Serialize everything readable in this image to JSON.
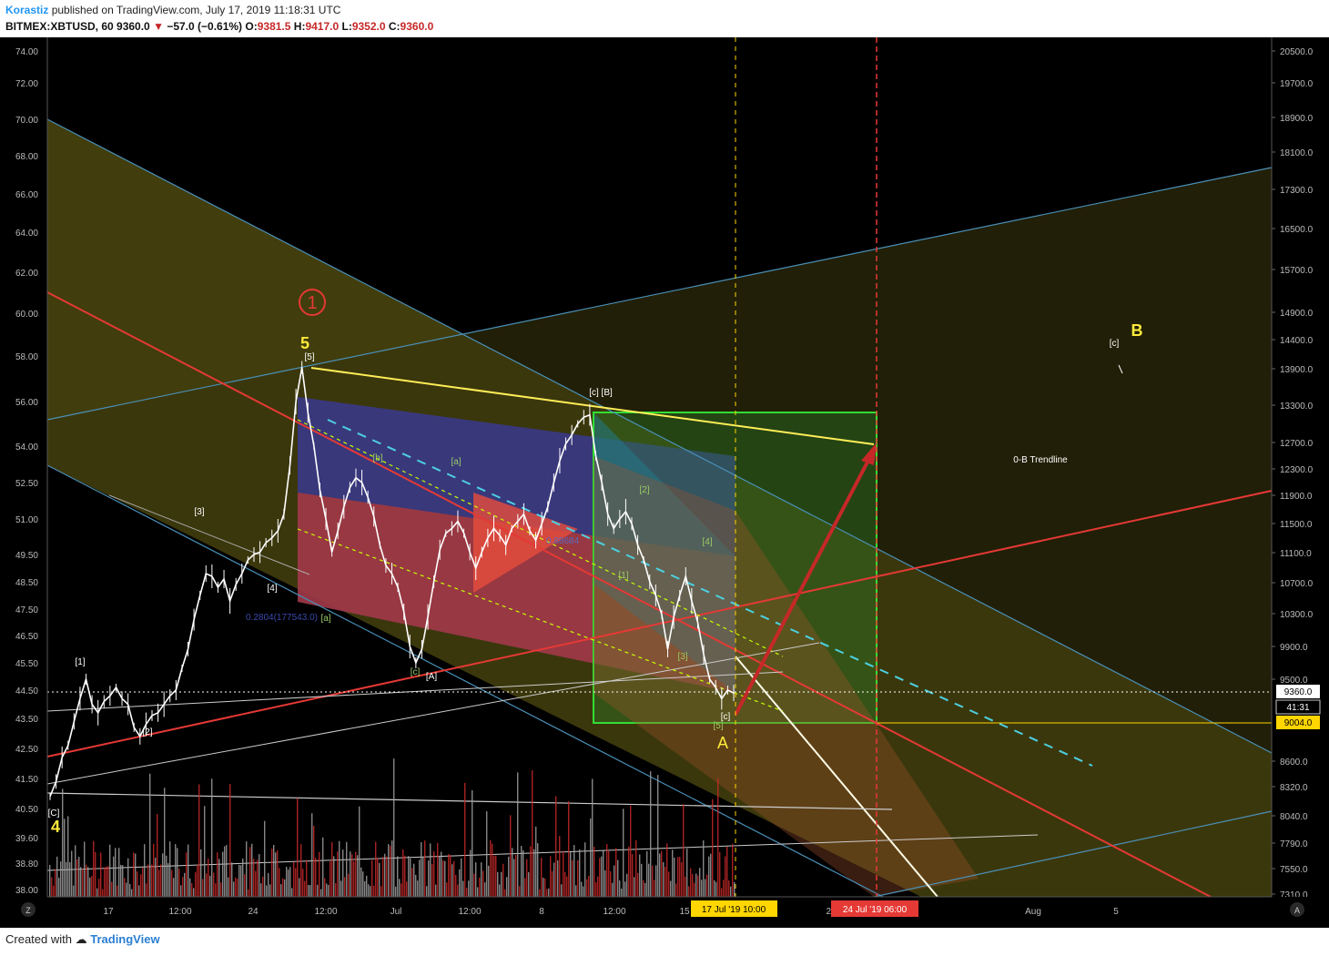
{
  "header": {
    "author": "Korastiz",
    "published": "published on TradingView.com, July 17, 2019 11:18:31 UTC",
    "symbol": "BITMEX:XBTUSD, 60",
    "last": "9360.0",
    "change": "−57.0 (−0.61%)",
    "o_label": "O:",
    "o": "9381.5",
    "h_label": "H:",
    "h": "9417.0",
    "l_label": "L:",
    "l": "9352.0",
    "c_label": "C:",
    "c": "9360.0"
  },
  "footer": {
    "created_with": "Created with",
    "brand": "TradingView"
  },
  "colors": {
    "background": "#000000",
    "candle": "#ffffff",
    "trend_red": "#e53935",
    "channel_blue": "#4a90b8",
    "yellow_line": "#ffee58",
    "green_box": "#33dd33",
    "price_tag": "#ffd600",
    "time_tag_current": "#ffd600",
    "time_tag_target": "#e53935"
  },
  "chart_data": {
    "type": "candlestick",
    "symbol": "BITMEX:XBTUSD",
    "interval": "60",
    "y_scale": "log",
    "right_axis_ticks": [
      "20500.0",
      "19700.0",
      "18900.0",
      "18100.0",
      "17300.0",
      "16500.0",
      "15700.0",
      "14900.0",
      "14400.0",
      "13900.0",
      "13300.0",
      "12700.0",
      "12300.0",
      "11900.0",
      "11500.0",
      "11100.0",
      "10700.0",
      "10300.0",
      "9900.0",
      "9500.0",
      "8600.0",
      "8320.0",
      "8040.0",
      "7790.0",
      "7550.0",
      "7310.0"
    ],
    "left_axis_ticks": [
      "74.00",
      "72.00",
      "70.00",
      "68.00",
      "66.00",
      "64.00",
      "62.00",
      "60.00",
      "58.00",
      "56.00",
      "54.00",
      "52.50",
      "51.00",
      "49.50",
      "48.50",
      "47.50",
      "46.50",
      "45.50",
      "44.50",
      "43.50",
      "42.50",
      "41.50",
      "40.50",
      "39.60",
      "38.80",
      "38.00"
    ],
    "x_ticks": [
      "17",
      "12:00",
      "24",
      "12:00",
      "Jul",
      "12:00",
      "8",
      "12:00",
      "15",
      "22",
      "Aug",
      "5"
    ],
    "price_tags": [
      {
        "value": "9360.0",
        "style": "last"
      },
      {
        "value": "41:31",
        "style": "countdown"
      },
      {
        "value": "9004.0",
        "style": "level"
      }
    ],
    "time_tags": [
      "17 Jul '19   10:00",
      "24 Jul '19   06:00"
    ],
    "price_path": [
      [
        10750,
        40.9
      ],
      [
        11400,
        41.4
      ],
      [
        11900,
        42.2
      ],
      [
        12350,
        42.6
      ],
      [
        12900,
        43.4
      ],
      [
        13300,
        44.2
      ],
      [
        13000,
        44.9
      ],
      [
        12700,
        44.0
      ],
      [
        12600,
        43.7
      ],
      [
        12400,
        44.1
      ],
      [
        12300,
        44.3
      ],
      [
        12600,
        44.6
      ],
      [
        12450,
        44.2
      ],
      [
        12350,
        44.0
      ],
      [
        12200,
        43.2
      ],
      [
        12300,
        42.9
      ],
      [
        12500,
        43.3
      ],
      [
        12600,
        43.6
      ],
      [
        12500,
        43.7
      ],
      [
        12650,
        44.0
      ],
      [
        12800,
        44.3
      ],
      [
        12700,
        44.5
      ],
      [
        13200,
        45.3
      ],
      [
        13600,
        46.0
      ],
      [
        13900,
        47.1
      ],
      [
        14100,
        48.0
      ],
      [
        14300,
        48.8
      ],
      [
        14150,
        48.7
      ],
      [
        13950,
        48.3
      ],
      [
        14000,
        48.6
      ],
      [
        13800,
        47.8
      ],
      [
        13900,
        48.4
      ],
      [
        14150,
        48.8
      ],
      [
        14300,
        49.3
      ],
      [
        14500,
        49.5
      ],
      [
        14700,
        49.6
      ],
      [
        14850,
        50.0
      ],
      [
        15100,
        50.2
      ],
      [
        15400,
        50.5
      ],
      [
        15650,
        51.2
      ],
      [
        16900,
        53.2
      ],
      [
        17600,
        56.0
      ],
      [
        18500,
        57.5
      ],
      [
        17900,
        55.5
      ],
      [
        17000,
        54.0
      ],
      [
        16200,
        52.2
      ],
      [
        15600,
        51.0
      ],
      [
        15300,
        49.6
      ],
      [
        15800,
        50.5
      ],
      [
        16400,
        51.5
      ],
      [
        16700,
        52.3
      ],
      [
        16900,
        52.7
      ],
      [
        16600,
        52.5
      ],
      [
        16200,
        51.9
      ],
      [
        15700,
        51.1
      ],
      [
        14900,
        49.9
      ],
      [
        14500,
        49.1
      ],
      [
        14300,
        48.8
      ],
      [
        14000,
        48.3
      ],
      [
        13500,
        47.4
      ],
      [
        12700,
        46.1
      ],
      [
        12200,
        45.5
      ],
      [
        12500,
        46.0
      ],
      [
        13200,
        47.2
      ],
      [
        14000,
        48.5
      ],
      [
        14800,
        49.7
      ],
      [
        15300,
        50.4
      ],
      [
        15400,
        50.6
      ],
      [
        15600,
        50.9
      ],
      [
        15300,
        50.4
      ],
      [
        14700,
        49.6
      ],
      [
        14200,
        49.0
      ],
      [
        14500,
        49.6
      ],
      [
        15000,
        50.2
      ],
      [
        15300,
        50.6
      ],
      [
        15100,
        50.3
      ],
      [
        14800,
        49.9
      ],
      [
        15300,
        50.6
      ],
      [
        15500,
        50.9
      ],
      [
        15700,
        51.2
      ],
      [
        15300,
        50.5
      ],
      [
        15100,
        50.1
      ],
      [
        15500,
        50.8
      ],
      [
        15900,
        51.5
      ],
      [
        16500,
        52.5
      ],
      [
        17000,
        53.4
      ],
      [
        17400,
        54.1
      ],
      [
        17600,
        54.5
      ],
      [
        17700,
        55.0
      ],
      [
        17800,
        55.3
      ],
      [
        17900,
        55.4
      ],
      [
        17100,
        53.6
      ],
      [
        16500,
        52.5
      ],
      [
        15800,
        51.2
      ],
      [
        15300,
        50.6
      ],
      [
        15600,
        51.0
      ],
      [
        15900,
        51.3
      ],
      [
        15400,
        50.8
      ],
      [
        14800,
        49.9
      ],
      [
        14400,
        49.3
      ],
      [
        14000,
        48.5
      ],
      [
        13800,
        48.0
      ],
      [
        13400,
        47.3
      ],
      [
        12700,
        46.0
      ],
      [
        13300,
        47.2
      ],
      [
        13900,
        48.0
      ],
      [
        14100,
        48.7
      ],
      [
        13700,
        47.8
      ],
      [
        13200,
        47.0
      ],
      [
        12600,
        45.8
      ],
      [
        12000,
        44.9
      ],
      [
        11800,
        44.6
      ],
      [
        11700,
        44.2
      ],
      [
        11850,
        44.5
      ],
      [
        11700,
        44.4
      ]
    ],
    "volume_note": "histogram, values not labeled"
  },
  "annotations": {
    "circled_1": "1",
    "wave_5": "5",
    "label_5b": "[5]",
    "label_cB": "[c] [B]",
    "label_3": "[3]",
    "label_4a": "[4]",
    "label_1": "[1]",
    "label_2": "[2]",
    "label_C": "[C]",
    "wave_4": "4",
    "label_a1": "[a]",
    "label_b1": "[b]",
    "label_c1": "[c]",
    "label_A1": "[A]",
    "label_a2": "[a]",
    "label_1b": "[1]",
    "label_2b": "[2]",
    "label_3b": "[3]",
    "label_4b": "[4]",
    "label_5c": "[5]",
    "label_c2": "[c]",
    "wave_A": "A",
    "wave_B": "B",
    "label_c3": "[c]",
    "trendline_label": "0-B Trendline",
    "fib_label1": "0.88684",
    "fib_label2": "0.2804(177543.0)"
  },
  "axis_buttons": {
    "left": "Z",
    "right": "A"
  }
}
